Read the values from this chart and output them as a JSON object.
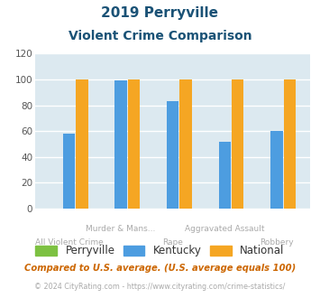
{
  "title_line1": "2019 Perryville",
  "title_line2": "Violent Crime Comparison",
  "categories": [
    "All Violent Crime",
    "Murder & Mans...",
    "Rape",
    "Aggravated Assault",
    "Robbery"
  ],
  "cat_labels_row1": [
    "",
    "Murder & Mans...",
    "",
    "Aggravated Assault",
    ""
  ],
  "cat_labels_row2": [
    "All Violent Crime",
    "",
    "Rape",
    "",
    "Robbery"
  ],
  "series": {
    "Perryville": [
      0,
      0,
      0,
      0,
      0
    ],
    "Kentucky": [
      58,
      99,
      83,
      52,
      60
    ],
    "National": [
      100,
      100,
      100,
      100,
      100
    ]
  },
  "colors": {
    "Perryville": "#7dc142",
    "Kentucky": "#4d9de0",
    "National": "#f5a623"
  },
  "ylim": [
    0,
    120
  ],
  "yticks": [
    0,
    20,
    40,
    60,
    80,
    100,
    120
  ],
  "title_color": "#1a5276",
  "plot_bg_color": "#dce9f0",
  "grid_color": "#ffffff",
  "xlabel_color": "#aaaaaa",
  "footer_text": "Compared to U.S. average. (U.S. average equals 100)",
  "footer_color": "#cc6600",
  "copyright_text": "© 2024 CityRating.com - https://www.cityrating.com/crime-statistics/",
  "copyright_color": "#aaaaaa"
}
